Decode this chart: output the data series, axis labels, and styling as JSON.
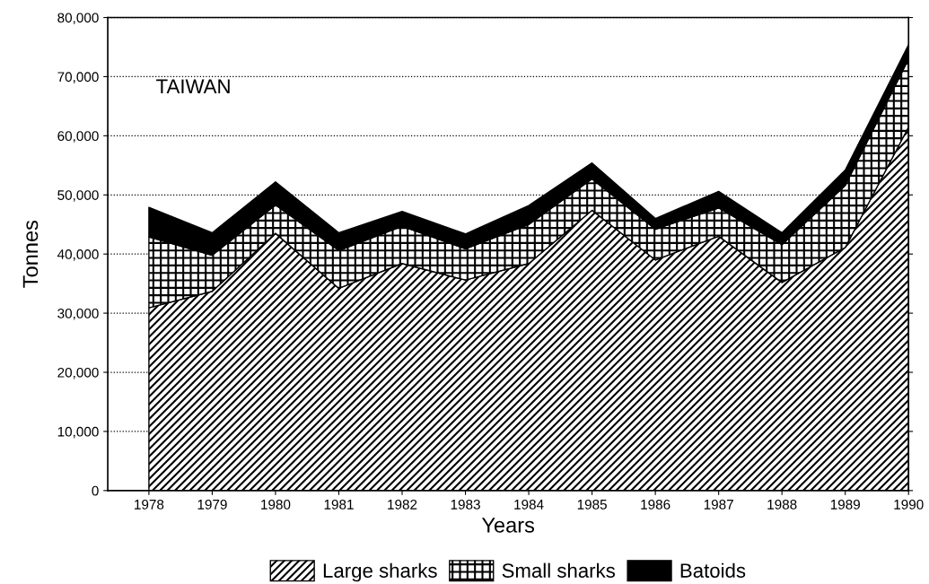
{
  "chart_data": {
    "type": "area",
    "stacked": true,
    "xlabel": "Years",
    "ylabel": "Tonnes",
    "annotations": [
      "TAIWAN"
    ],
    "categories": [
      "1978",
      "1979",
      "1980",
      "1981",
      "1982",
      "1983",
      "1984",
      "1985",
      "1986",
      "1987",
      "1988",
      "1989",
      "1990"
    ],
    "series": [
      {
        "name": "Large sharks",
        "color": "#000000",
        "values": [
          30900,
          33700,
          43500,
          34200,
          38400,
          35600,
          38400,
          47400,
          39000,
          43000,
          35200,
          41100,
          61500
        ]
      },
      {
        "name": "Small sharks",
        "color": "#000000",
        "values": [
          12000,
          6100,
          4800,
          6400,
          6300,
          5300,
          6600,
          5300,
          5200,
          4800,
          6400,
          10500,
          11500
        ]
      },
      {
        "name": "Batoids",
        "color": "#000000",
        "values": [
          5000,
          3800,
          3900,
          3000,
          2500,
          2500,
          3200,
          2700,
          1800,
          2800,
          2000,
          2600,
          2400
        ]
      }
    ],
    "ylim": [
      0,
      80000
    ],
    "yticks": [
      {
        "value": 0,
        "label": "0"
      },
      {
        "value": 10000,
        "label": "10,000"
      },
      {
        "value": 20000,
        "label": "20,000"
      },
      {
        "value": 30000,
        "label": "30,000"
      },
      {
        "value": 40000,
        "label": "40,000"
      },
      {
        "value": 50000,
        "label": "50,000"
      },
      {
        "value": 60000,
        "label": "60,000"
      },
      {
        "value": 70000,
        "label": "70,000"
      },
      {
        "value": 80000,
        "label": "80,000"
      }
    ],
    "grid": "y",
    "legend": "bottom"
  }
}
